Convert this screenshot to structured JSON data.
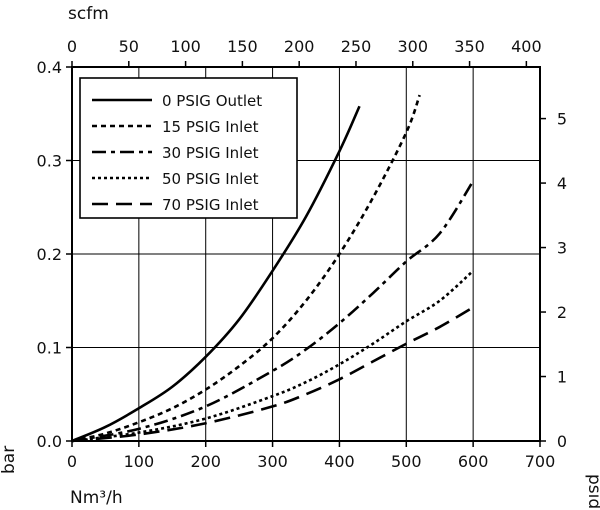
{
  "chart_data": {
    "type": "line",
    "xlabel": "Nm³/h",
    "ylabel": "bar",
    "x2label": "scfm",
    "y2label": "psid",
    "xlim": [
      0,
      700
    ],
    "ylim": [
      0,
      0.4
    ],
    "x2lim": [
      0,
      412
    ],
    "y2lim": [
      0,
      5.8
    ],
    "xticks": [
      "0",
      "100",
      "200",
      "300",
      "400",
      "500",
      "600",
      "700"
    ],
    "yticks": [
      "0.0",
      "0.1",
      "0.2",
      "0.3",
      "0.4"
    ],
    "x2ticks": [
      "0",
      "50",
      "100",
      "150",
      "200",
      "250",
      "300",
      "350",
      "400"
    ],
    "y2ticks": [
      "0",
      "1",
      "2",
      "3",
      "4",
      "5"
    ],
    "grid": true,
    "legend_position": "top-left",
    "series": [
      {
        "name": "0 PSIG Outlet",
        "dash": "solid",
        "points": [
          [
            0,
            0
          ],
          [
            50,
            0.015
          ],
          [
            100,
            0.035
          ],
          [
            150,
            0.058
          ],
          [
            200,
            0.09
          ],
          [
            250,
            0.13
          ],
          [
            300,
            0.182
          ],
          [
            350,
            0.24
          ],
          [
            400,
            0.31
          ],
          [
            430,
            0.358
          ]
        ]
      },
      {
        "name": "15 PSIG Inlet",
        "dash": "dot",
        "points": [
          [
            0,
            0
          ],
          [
            50,
            0.008
          ],
          [
            100,
            0.02
          ],
          [
            150,
            0.035
          ],
          [
            200,
            0.055
          ],
          [
            250,
            0.08
          ],
          [
            300,
            0.11
          ],
          [
            350,
            0.15
          ],
          [
            400,
            0.2
          ],
          [
            450,
            0.26
          ],
          [
            500,
            0.33
          ],
          [
            520,
            0.37
          ]
        ]
      },
      {
        "name": "30 PSIG Inlet",
        "dash": "dashdot",
        "points": [
          [
            0,
            0
          ],
          [
            100,
            0.013
          ],
          [
            200,
            0.037
          ],
          [
            300,
            0.075
          ],
          [
            350,
            0.098
          ],
          [
            400,
            0.126
          ],
          [
            450,
            0.158
          ],
          [
            500,
            0.192
          ],
          [
            550,
            0.222
          ],
          [
            600,
            0.278
          ]
        ]
      },
      {
        "name": "50 PSIG Inlet",
        "dash": "densedot",
        "points": [
          [
            0,
            0
          ],
          [
            100,
            0.009
          ],
          [
            200,
            0.024
          ],
          [
            300,
            0.048
          ],
          [
            350,
            0.063
          ],
          [
            400,
            0.082
          ],
          [
            450,
            0.104
          ],
          [
            500,
            0.128
          ],
          [
            550,
            0.15
          ],
          [
            600,
            0.182
          ]
        ]
      },
      {
        "name": "70 PSIG Inlet",
        "dash": "longdash",
        "points": [
          [
            0,
            0
          ],
          [
            100,
            0.007
          ],
          [
            200,
            0.019
          ],
          [
            300,
            0.037
          ],
          [
            350,
            0.05
          ],
          [
            400,
            0.066
          ],
          [
            450,
            0.085
          ],
          [
            500,
            0.104
          ],
          [
            550,
            0.122
          ],
          [
            600,
            0.143
          ]
        ]
      }
    ]
  }
}
